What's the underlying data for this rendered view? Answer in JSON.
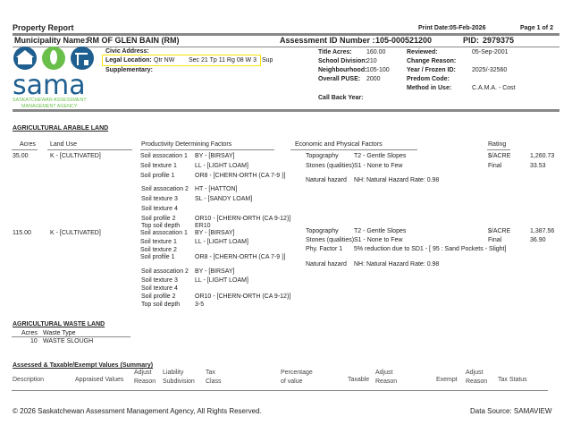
{
  "header": {
    "title": "Property Report",
    "print_date_label": "Print Date:",
    "print_date": "05-Feb-2026",
    "page": "Page 1 of 2",
    "municipality_label": "Municipality Name:",
    "municipality": "RM OF GLEN BAIN (RM)",
    "assessment_label": "Assessment ID Number :",
    "assessment_id": "105-000521200",
    "pid_label": "PID:",
    "pid": "2979375"
  },
  "logo": {
    "text": "sama",
    "line1": "SASKATCHEWAN ASSESSMENT",
    "line2": "MANAGEMENT AGENCY",
    "colors": {
      "blue": "#1f5f8f",
      "green": "#6abf4b"
    }
  },
  "property": {
    "civic_label": "Civic Address:",
    "legal_label": "Legal Location:",
    "qtr": "Qtr NW",
    "sec": "Sec 21  Tp 11  Rg 08  W 3",
    "sup": "Sup",
    "supp_label": "Supplementary:",
    "highlight_color": "#f5e60a",
    "fields": [
      {
        "l": "Title Acres:",
        "v": "160.00",
        "l2": "Reviewed:",
        "v2": "05-Sep-2001"
      },
      {
        "l": "School Division:",
        "v": "210",
        "l2": "Change Reason:",
        "v2": ""
      },
      {
        "l": "Neighbourhood:",
        "v": "105-100",
        "l2": "Year / Frozen ID:",
        "v2": "2025/-32560"
      },
      {
        "l": "Overall PUSE:",
        "v": "2000",
        "l2": "Predom Code:",
        "v2": ""
      },
      {
        "l": "",
        "v": "",
        "l2": "Method in Use:",
        "v2": "C.A.M.A. - Cost"
      }
    ],
    "callback_label": "Call Back Year:"
  },
  "arable": {
    "title": "AGRICULTURAL ARABLE LAND",
    "headers": {
      "acres": "Acres",
      "land_use": "Land Use",
      "pdf": "Productivity Determining Factors",
      "epf": "Economic and Physical Factors",
      "rating": "Rating"
    },
    "rows": [
      {
        "acres": "35.00",
        "land_use": "K - [CULTIVATED]",
        "factors": [
          [
            "Soil assocation 1",
            "BY - [BIRSAY]"
          ],
          [
            "Soil texture 1",
            "LL - [LIGHT LOAM]"
          ],
          [
            "Soil profile 1",
            "OR8 - [CHERN-ORTH (CA 7-9 )]"
          ],
          [
            "Soil assocation 2",
            "HT - [HATTON]"
          ],
          [
            "Soil texture 3",
            "SL - [SANDY LOAM]"
          ],
          [
            "Soil texture 4",
            ""
          ],
          [
            "Soil profile 2",
            "OR10 - [CHERN-ORTH (CA 9-12)]"
          ],
          [
            "Top soil depth",
            "ER10"
          ]
        ],
        "econ": [
          [
            "Topography",
            "T2 - Gentle Slopes"
          ],
          [
            "Stones (qualities)",
            "S1 - None to Few"
          ],
          [
            "Natural hazard",
            "NH: Natural Hazard Rate: 0.98"
          ]
        ],
        "rating": [
          [
            "$/ACRE",
            "1,260.73"
          ],
          [
            "Final",
            "33.53"
          ]
        ]
      },
      {
        "acres": "115.00",
        "land_use": "K - [CULTIVATED]",
        "factors": [
          [
            "Soil assocation 1",
            "BY - [BIRSAY]"
          ],
          [
            "Soil texture 1",
            "LL - [LIGHT LOAM]"
          ],
          [
            "Soil texture 2",
            ""
          ],
          [
            "Soil profile 1",
            "OR8 - [CHERN-ORTH (CA 7-9 )]"
          ],
          [
            "Soil assocation 2",
            "BY - [BIRSAY]"
          ],
          [
            "Soil texture 3",
            "LL - [LIGHT LOAM]"
          ],
          [
            "Soil texture 4",
            ""
          ],
          [
            "Soil profile 2",
            "OR10 - [CHERN-ORTH (CA 9-12)]"
          ],
          [
            "Top soil depth",
            "3-5"
          ]
        ],
        "econ": [
          [
            "Topography",
            "T2 - Gentle Slopes"
          ],
          [
            "Stones (qualities)",
            "S1 - None to Few"
          ],
          [
            "Phy. Factor 1",
            "5% reduction due to SD1 - [ 95 : Sand Pockets - Slight]"
          ],
          [
            "Natural hazard",
            "NH: Natural Hazard Rate: 0.98"
          ]
        ],
        "rating": [
          [
            "$/ACRE",
            "1,387.56"
          ],
          [
            "Final",
            "36.90"
          ]
        ]
      }
    ]
  },
  "waste": {
    "title": "AGRICULTURAL WASTE LAND",
    "acres_h": "Acres",
    "type_h": "Waste Type",
    "acres": "10",
    "type": "WASTE SLOUGH"
  },
  "summary": {
    "title": "Assessed & Taxable/Exempt Values (Summary)",
    "headers": [
      "Description",
      "Appraised Values",
      "Adjust\nReason",
      "Liability\nSubdivision",
      "Tax\nClass",
      "Percentage\nof value",
      "Taxable",
      "Adjust\nReason",
      "Exempt",
      "Adjust\nReason",
      "Tax Status"
    ]
  },
  "footer": {
    "copyright": "© 2026 Saskatchewan Assessment Management Agency, All Rights Reserved.",
    "source": "Data Source: SAMAVIEW"
  }
}
